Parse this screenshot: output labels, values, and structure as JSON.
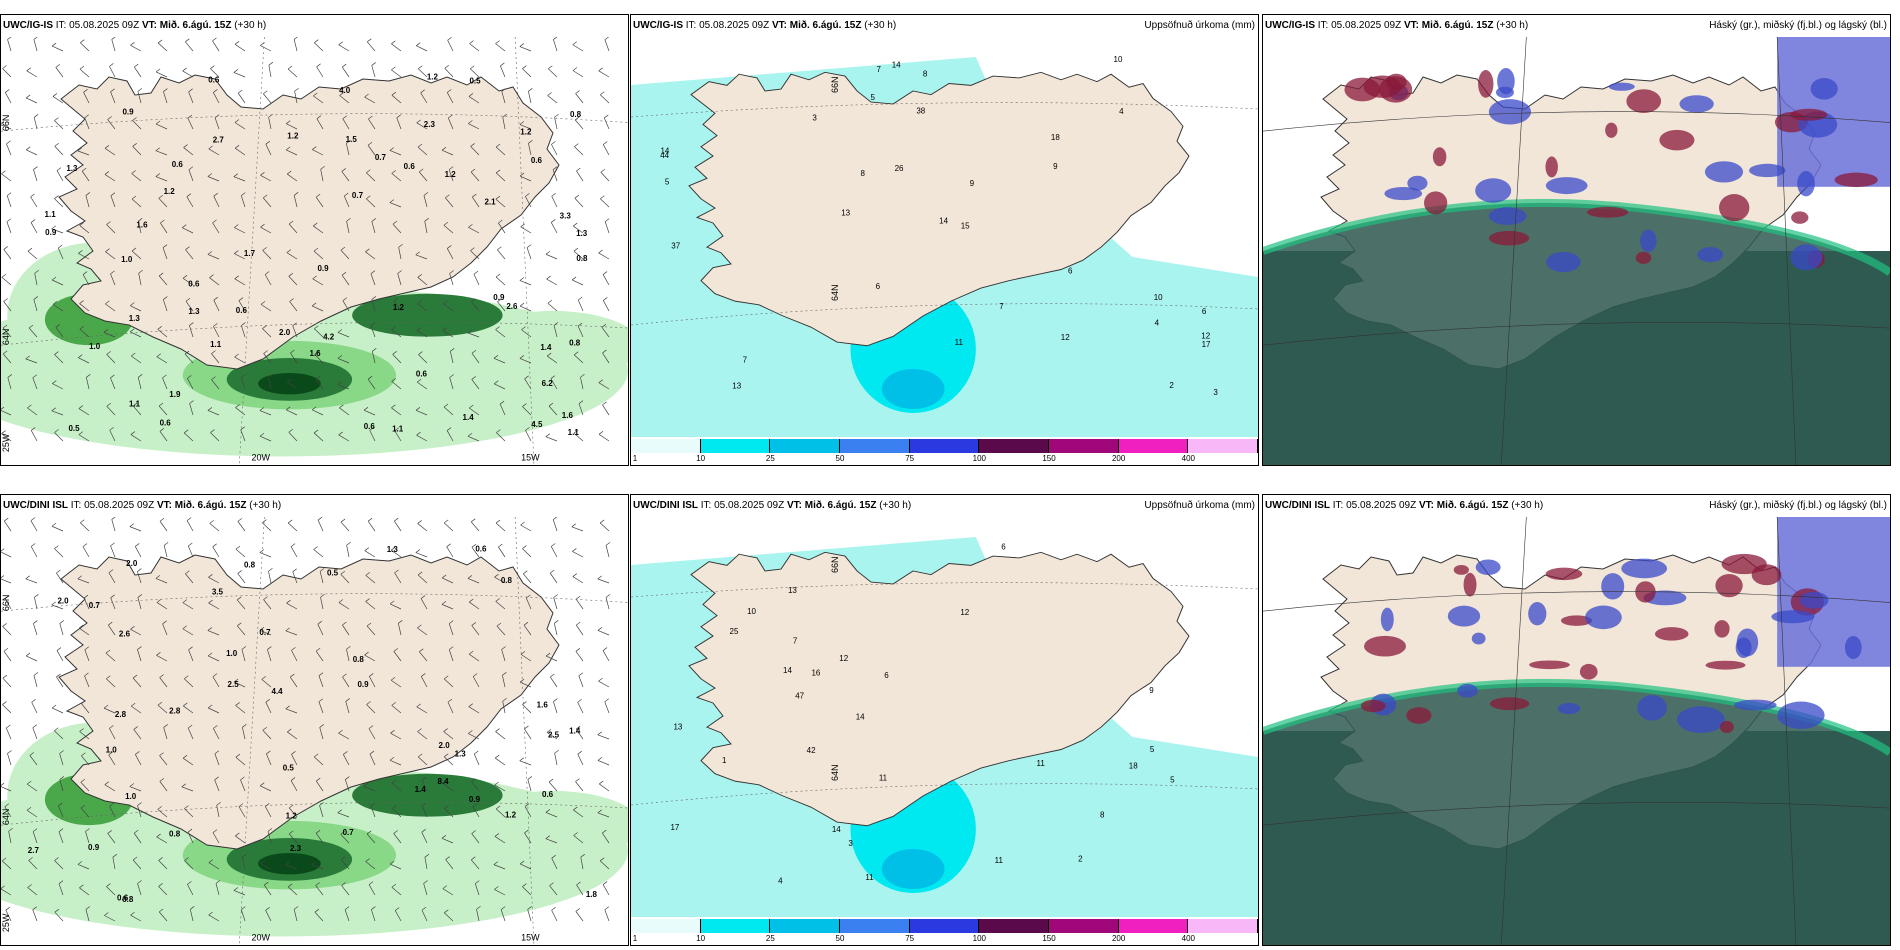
{
  "colors": {
    "land": "#f2e6d9",
    "sea_precip_light": "#aaf4f0",
    "sea_green_light": "#c8f0c8",
    "green_dark": "#0a4a1a",
    "cloud_dark": "#2f5a52",
    "cloud_high": "#8a1a3a",
    "cloud_mid": "#3a4ac8",
    "cloud_low_green": "#20c080"
  },
  "panels": [
    {
      "model": "UWC/IG-IS",
      "it_label": "IT:",
      "it_value": "05.08.2025 09Z",
      "vt_label": "VT: Mið. 6.ágú. 15Z",
      "lead": "(+30 h)",
      "right_title": "",
      "type": "wind-precip",
      "axis_labels": [
        "66N",
        "64N",
        "25W",
        "20W",
        "15W"
      ],
      "values": [
        "3.3",
        "0.6",
        "1.3",
        "1.7",
        "0.8",
        "0.6",
        "1.2",
        "1.4",
        "1.2",
        "1.2",
        "2.6",
        "2.1",
        "1.1",
        "1.0",
        "0.9",
        "0.6",
        "1.1",
        "0.6",
        "1.2",
        "1.6",
        "1.5",
        "1.1",
        "1.3",
        "0.7",
        "0.5",
        "0.5",
        "0.6",
        "0.6",
        "0.8",
        "0.6",
        "1.1",
        "1.0",
        "4.0",
        "1.6",
        "0.9",
        "0.8",
        "1.2",
        "0.6",
        "0.9",
        "1.1",
        "1.3",
        "2.0",
        "4.2",
        "6.2",
        "0.9",
        "0.7",
        "1.2",
        "2.7",
        "1.9",
        "4.5",
        "0.6",
        "1.4",
        "2.3",
        "1.3",
        "1.6"
      ]
    },
    {
      "model": "UWC/IG-IS",
      "it_label": "IT:",
      "it_value": "05.08.2025 09Z",
      "vt_label": "VT: Mið. 6.ágú. 15Z",
      "lead": "(+30 h)",
      "right_title": "Uppsöfnuð úrkoma (mm)",
      "type": "accum-precip",
      "axis_labels": [
        "66N",
        "64N"
      ],
      "values": [
        "3",
        "2",
        "5",
        "10",
        "6",
        "15",
        "8",
        "3",
        "7",
        "6",
        "14",
        "9",
        "12",
        "13",
        "12",
        "11",
        "18",
        "26",
        "14",
        "37",
        "44",
        "17",
        "38",
        "10",
        "14",
        "13",
        "7",
        "8",
        "6",
        "5",
        "4",
        "9",
        "4",
        "7"
      ]
    },
    {
      "model": "UWC/IG-IS",
      "it_label": "IT:",
      "it_value": "05.08.2025 09Z",
      "vt_label": "VT: Mið. 6.ágú. 15Z",
      "lead": "(+30 h)",
      "right_title": "Háský (gr.), miðský (fj.bl.) og lágský (bl.)",
      "type": "clouds",
      "axis_labels": [],
      "values": []
    },
    {
      "model": "UWC/DINI ISL",
      "it_label": "IT:",
      "it_value": "05.08.2025 09Z",
      "vt_label": "VT: Mið. 6.ágú. 15Z",
      "lead": "(+30 h)",
      "right_title": "",
      "type": "wind-precip",
      "axis_labels": [
        "66N",
        "64N",
        "25W",
        "20W",
        "15W"
      ],
      "values": [
        "1.0",
        "0.8",
        "0.5",
        "1.4",
        "0.8",
        "0.6",
        "0.9",
        "2.8",
        "1.6",
        "1.0",
        "0.6",
        "0.7",
        "0.8",
        "0.7",
        "1.3",
        "1.0",
        "0.5",
        "0.8",
        "1.2",
        "0.6",
        "1.4",
        "2.0",
        "0.9",
        "1.3",
        "2.8",
        "8.4",
        "2.5",
        "2.3",
        "3.5",
        "2.0",
        "1.8",
        "2.5",
        "4.4",
        "2.0",
        "0.8",
        "1.2",
        "2.7",
        "0.7",
        "0.9",
        "2.6"
      ]
    },
    {
      "model": "UWC/DINI ISL",
      "it_label": "IT:",
      "it_value": "05.08.2025 09Z",
      "vt_label": "VT: Mið. 6.ágú. 15Z",
      "lead": "(+30 h)",
      "right_title": "Uppsöfnuð úrkoma (mm)",
      "type": "accum-precip",
      "axis_labels": [
        "66N",
        "64N"
      ],
      "values": [
        "2",
        "1",
        "3",
        "5",
        "6",
        "14",
        "11",
        "9",
        "10",
        "12",
        "13",
        "14",
        "11",
        "13",
        "18",
        "25",
        "11",
        "12",
        "47",
        "42",
        "17",
        "14",
        "11",
        "16",
        "8",
        "7",
        "6",
        "5",
        "4"
      ]
    },
    {
      "model": "UWC/DINI ISL",
      "it_label": "IT:",
      "it_value": "05.08.2025 09Z",
      "vt_label": "VT: Mið. 6.ágú. 15Z",
      "lead": "(+30 h)",
      "right_title": "Háský (gr.), miðský (fj.bl.) og lágský (bl.)",
      "type": "clouds",
      "axis_labels": [],
      "values": []
    }
  ],
  "colorbar": {
    "ticks": [
      "1",
      "10",
      "25",
      "50",
      "75",
      "100",
      "150",
      "200",
      "400"
    ],
    "colors": [
      "#e8fcfc",
      "#00e8f0",
      "#00c0e8",
      "#3a80f0",
      "#2a3ae0",
      "#5a0a4a",
      "#a0087a",
      "#f020c0",
      "#f8b8f8"
    ]
  }
}
